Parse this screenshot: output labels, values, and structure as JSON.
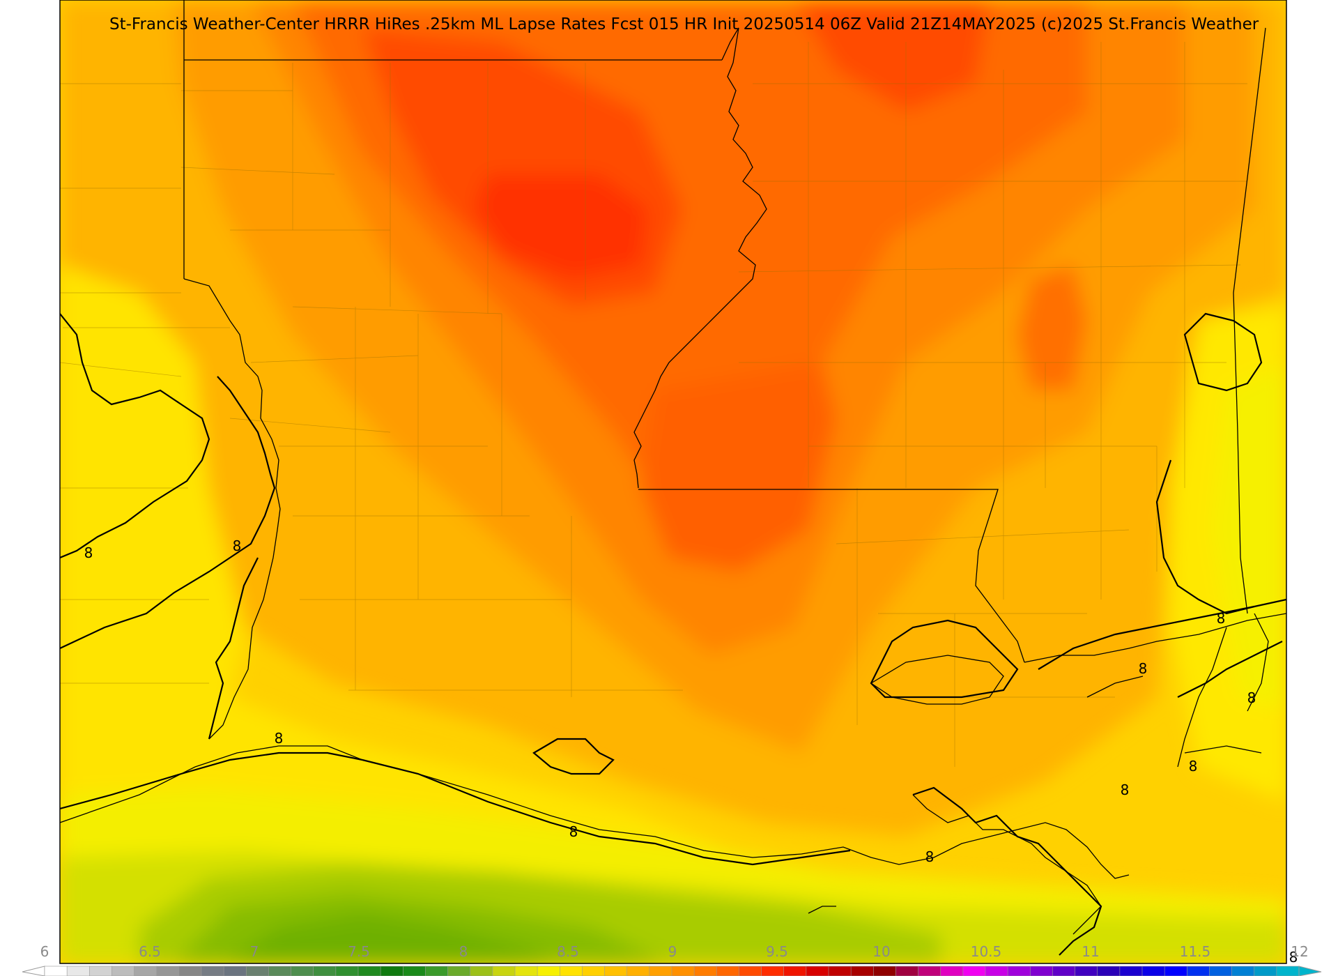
{
  "header": {
    "title": "St-Francis Weather-Center HRRR HiRes .25km ML Lapse Rates  Fcst 015 HR Init 20250514 06Z  Valid 21Z14MAY2025    (c)2025 St.Francis Weather"
  },
  "map": {
    "contour_value": "8",
    "contour_labels": [
      "8",
      "8",
      "8",
      "8",
      "8",
      "8",
      "8",
      "8",
      "8",
      "8",
      "8"
    ]
  },
  "colorbar": {
    "tick_labels": [
      "6",
      "6.5",
      "7",
      "7.5",
      "8",
      "8.5",
      "9",
      "9.5",
      "10",
      "10.5",
      "11",
      "11.5",
      "12"
    ],
    "colors": [
      "#ffffff",
      "#e8e8e8",
      "#d2d2d2",
      "#bcbcbc",
      "#a6a6a6",
      "#969696",
      "#868686",
      "#767c84",
      "#6b7480",
      "#6a8070",
      "#5a8a5a",
      "#4e8e4e",
      "#3f8f3f",
      "#2f8f2f",
      "#1f8a1f",
      "#107a10",
      "#1a8a1a",
      "#3a9a2a",
      "#6aaa2a",
      "#9cc018",
      "#c8d410",
      "#e4e40c",
      "#f6f000",
      "#ffe200",
      "#ffd000",
      "#ffc000",
      "#ffb000",
      "#ffa000",
      "#ff9000",
      "#ff7c00",
      "#ff6600",
      "#ff4a00",
      "#ff2c00",
      "#f01400",
      "#d80000",
      "#c00000",
      "#a80000",
      "#900000",
      "#a00040",
      "#c0007a",
      "#e000c0",
      "#f000f0",
      "#c800e6",
      "#a000dc",
      "#8000d0",
      "#6000c8",
      "#4000c0",
      "#2a00b8",
      "#1a00d0",
      "#0a00e8",
      "#0000ff",
      "#0030f0",
      "#0060e0",
      "#0080d4",
      "#009ac8",
      "#00b4cc"
    ]
  }
}
